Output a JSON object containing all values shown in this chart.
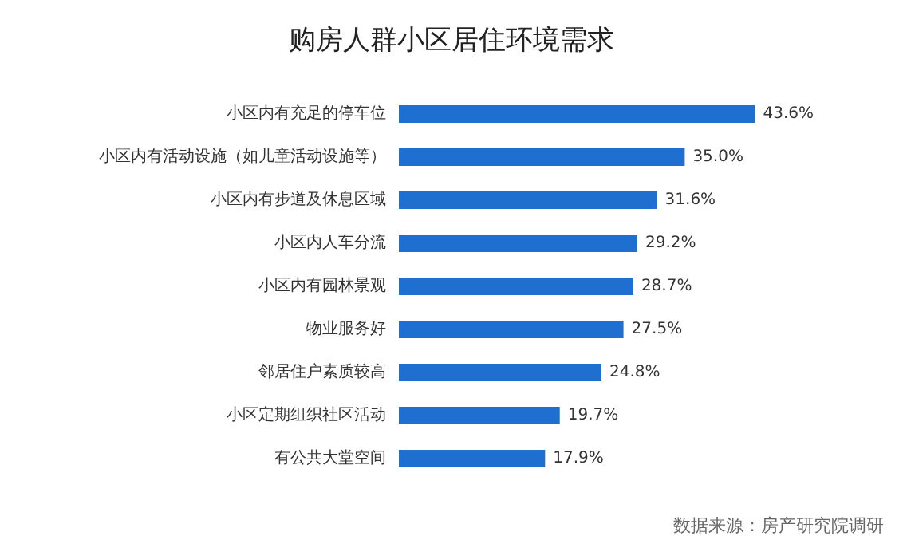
{
  "chart_data": {
    "type": "bar",
    "orientation": "horizontal",
    "title": "购房人群小区居住环境需求",
    "categories": [
      "小区内有充足的停车位",
      "小区内有活动设施（如儿童活动设施等）",
      "小区内有步道及休息区域",
      "小区内人车分流",
      "小区内有园林景观",
      "物业服务好",
      "邻居住户素质较高",
      "小区定期组织社区活动",
      "有公共大堂空间"
    ],
    "values": [
      43.6,
      35.0,
      31.6,
      29.2,
      28.7,
      27.5,
      24.8,
      19.7,
      17.9
    ],
    "value_labels": [
      "43.6%",
      "35.0%",
      "31.6%",
      "29.2%",
      "28.7%",
      "27.5%",
      "24.8%",
      "19.7%",
      "17.9%"
    ],
    "color": "#1f6fd1",
    "annotations": [
      "数据来源：房产研究院调研"
    ]
  }
}
